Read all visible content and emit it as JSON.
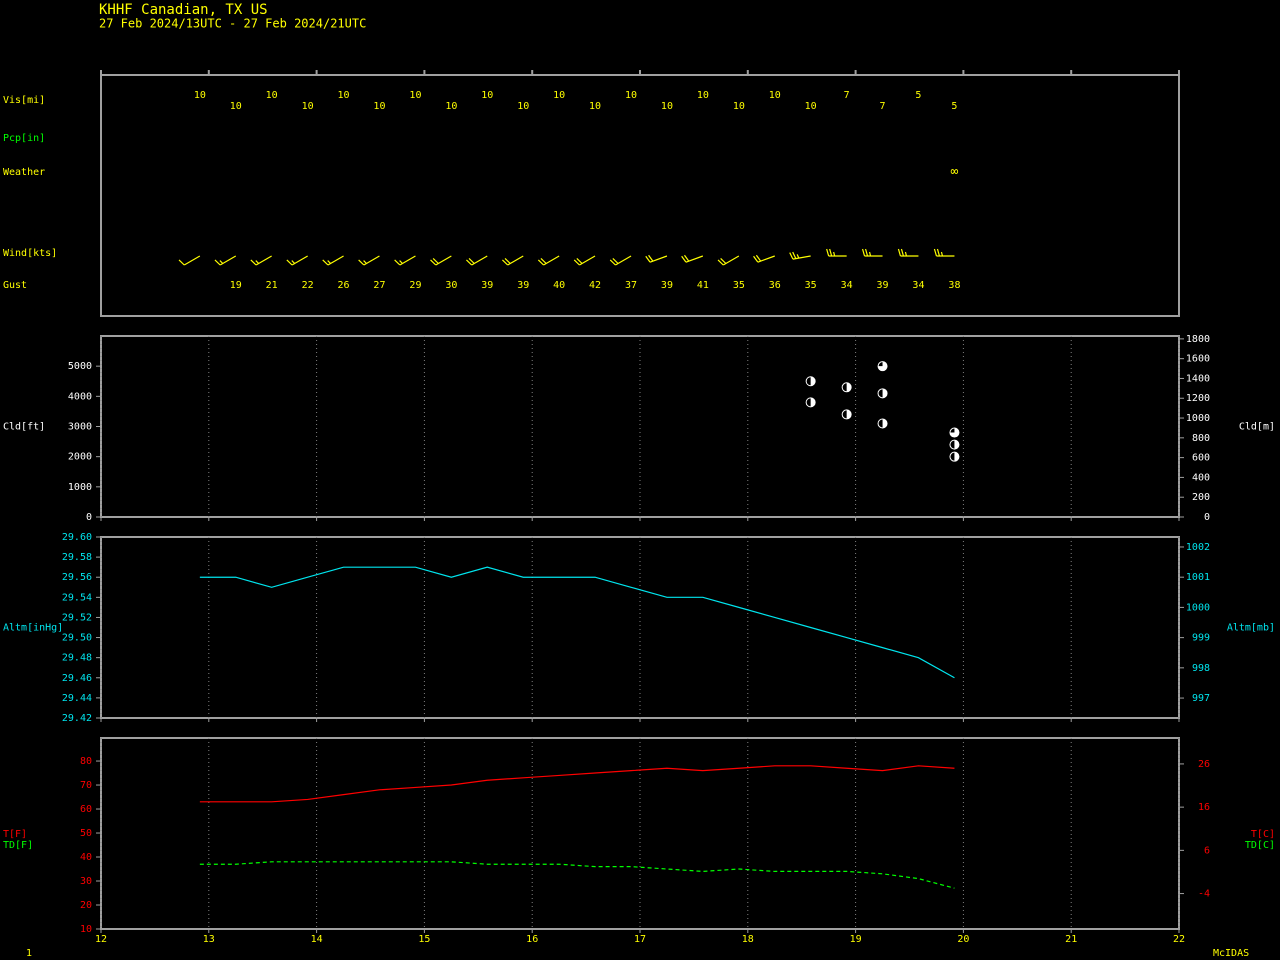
{
  "header": {
    "station": "KHHF  Canadian, TX US",
    "period": "27 Feb 2024/13UTC - 27 Feb 2024/21UTC"
  },
  "footer": {
    "page": "1",
    "software": "McIDAS"
  },
  "chart_data": [
    {
      "type": "obs",
      "x": [
        12.917,
        13.25,
        13.583,
        13.917,
        14.25,
        14.583,
        14.917,
        15.25,
        15.583,
        15.917,
        16.25,
        16.583,
        16.917,
        17.25,
        17.583,
        17.917,
        18.25,
        18.583,
        18.917,
        19.25,
        19.583,
        19.917
      ],
      "xlim": [
        12,
        22
      ],
      "xticks": [
        12,
        13,
        14,
        15,
        16,
        17,
        18,
        19,
        20,
        21,
        22
      ],
      "vis_label": "Vis[mi]",
      "vis": [
        10,
        10,
        10,
        10,
        10,
        10,
        10,
        10,
        10,
        10,
        10,
        10,
        10,
        10,
        10,
        10,
        10,
        10,
        7,
        7,
        5,
        5
      ],
      "pcp_label": "Pcp[in]",
      "weather_label": "Weather",
      "weather": [
        null,
        null,
        null,
        null,
        null,
        null,
        null,
        null,
        null,
        null,
        null,
        null,
        null,
        null,
        null,
        null,
        null,
        null,
        null,
        null,
        null,
        "∞"
      ],
      "wind_label": "Wind[kts]",
      "wind_direction": [
        240,
        240,
        240,
        240,
        240,
        240,
        240,
        240,
        240,
        240,
        240,
        240,
        240,
        250,
        250,
        240,
        250,
        260,
        270,
        270,
        270,
        270
      ],
      "wind_speed": [
        10,
        15,
        15,
        15,
        15,
        15,
        15,
        20,
        20,
        20,
        20,
        20,
        20,
        20,
        20,
        20,
        20,
        25,
        25,
        25,
        25,
        25
      ],
      "color": "#ffff00",
      "gust_label": "Gust",
      "gust": [
        null,
        19,
        21,
        22,
        26,
        27,
        29,
        30,
        39,
        39,
        40,
        42,
        37,
        39,
        41,
        35,
        36,
        35,
        34,
        39,
        34,
        38
      ]
    },
    {
      "type": "scatter",
      "y_label": "Cld[ft]",
      "y2_label": "Cld[m]",
      "x": [
        18.583,
        18.583,
        18.917,
        18.917,
        19.25,
        19.25,
        19.25,
        19.917,
        19.917,
        19.917
      ],
      "values": [
        4500,
        3800,
        4300,
        3400,
        5000,
        4100,
        3100,
        2800,
        2400,
        2000
      ],
      "cover": [
        0.5,
        0.5,
        0.5,
        0.5,
        0.75,
        0.5,
        0.5,
        0.75,
        0.5,
        0.5
      ],
      "color": "#ffffff",
      "xlim": [
        12,
        22
      ],
      "xticks": [
        12,
        13,
        14,
        15,
        16,
        17,
        18,
        19,
        20,
        21,
        22
      ],
      "ylim": [
        0,
        6000
      ],
      "yticks": [
        0,
        1000,
        2000,
        3000,
        4000,
        5000
      ],
      "y2lim": [
        0,
        1829
      ],
      "y2ticks": [
        0,
        200,
        400,
        600,
        800,
        1000,
        1200,
        1400,
        1600,
        1800
      ]
    },
    {
      "type": "line",
      "y_label": "Altm[inHg]",
      "y2_label": "Altm[mb]",
      "x": [
        12.917,
        13.25,
        13.583,
        13.917,
        14.25,
        14.583,
        14.917,
        15.25,
        15.583,
        15.917,
        16.25,
        16.583,
        16.917,
        17.25,
        17.583,
        17.917,
        18.25,
        18.583,
        18.917,
        19.25,
        19.583,
        19.917
      ],
      "series": [
        {
          "name": "Altm",
          "color": "#00e5ee",
          "values": [
            29.56,
            29.56,
            29.55,
            29.56,
            29.57,
            29.57,
            29.57,
            29.56,
            29.57,
            29.56,
            29.56,
            29.56,
            29.55,
            29.54,
            29.54,
            29.53,
            29.52,
            29.51,
            29.5,
            29.49,
            29.48,
            29.46
          ]
        }
      ],
      "xlim": [
        12,
        22
      ],
      "xticks": [
        12,
        13,
        14,
        15,
        16,
        17,
        18,
        19,
        20,
        21,
        22
      ],
      "ylim": [
        29.42,
        29.6
      ],
      "yticks": [
        29.42,
        29.44,
        29.46,
        29.48,
        {
          "value": 29.5,
          "label": "29.50"
        },
        29.52,
        29.54,
        29.56,
        29.58,
        {
          "value": 29.6,
          "label": "29.60"
        }
      ],
      "y2lim": [
        996.34,
        1002.33
      ],
      "y2ticks": [
        997,
        998,
        999,
        1000,
        1001,
        1002
      ]
    },
    {
      "type": "line",
      "x": [
        12.917,
        13.25,
        13.583,
        13.917,
        14.25,
        14.583,
        14.917,
        15.25,
        15.583,
        15.917,
        16.25,
        16.583,
        16.917,
        17.25,
        17.583,
        17.917,
        18.25,
        18.583,
        18.917,
        19.25,
        19.583,
        19.917
      ],
      "series": [
        {
          "name": "T[F]",
          "y2_name": "T[C]",
          "color": "#ff0000",
          "dashed": false,
          "values": [
            63,
            63,
            63,
            64,
            66,
            68,
            69,
            70,
            72,
            73,
            74,
            75,
            76,
            77,
            76,
            77,
            78,
            78,
            77,
            76,
            78,
            77
          ]
        },
        {
          "name": "TD[F]",
          "y2_name": "TD[C]",
          "color": "#00ff00",
          "dashed": true,
          "values": [
            37,
            37,
            38,
            38,
            38,
            38,
            38,
            38,
            37,
            37,
            37,
            36,
            36,
            35,
            34,
            35,
            34,
            34,
            34,
            33,
            31,
            27
          ]
        }
      ],
      "xlim": [
        12,
        22
      ],
      "xticks": [
        12,
        13,
        14,
        15,
        16,
        17,
        18,
        19,
        20,
        21,
        22
      ],
      "ylim": [
        10,
        89.6
      ],
      "yticks": [
        10,
        20,
        30,
        40,
        50,
        60,
        70,
        80
      ],
      "y2lim": [
        -12.2,
        32
      ],
      "y2ticks": [
        -4,
        6,
        16,
        26
      ],
      "y2color": "#ff0000"
    }
  ]
}
